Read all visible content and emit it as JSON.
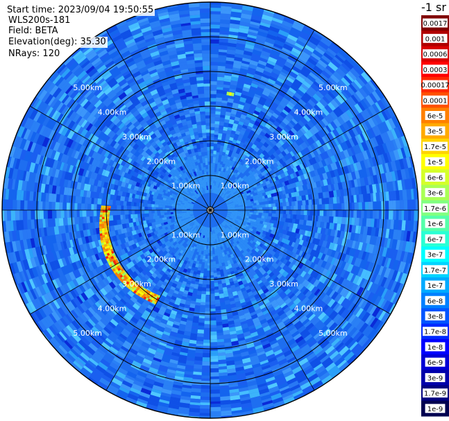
{
  "header": {
    "start_time": "Start time: 2023/09/04 19:50:55",
    "instrument": "WLS200s-181",
    "field": "Field: BETA",
    "elevation": "Elevation(deg): 35.30",
    "nrays": "NRays: 120"
  },
  "colorbar": {
    "unit_label": "-1 sr",
    "entries": [
      {
        "label": "0.0017",
        "color": "#800000"
      },
      {
        "label": "0.001",
        "color": "#b00000"
      },
      {
        "label": "0.0006",
        "color": "#d80000"
      },
      {
        "label": "0.0003",
        "color": "#ff0000"
      },
      {
        "label": "0.00017",
        "color": "#ff2800"
      },
      {
        "label": "0.0001",
        "color": "#ff5000"
      },
      {
        "label": "6e-5",
        "color": "#ff8000"
      },
      {
        "label": "3e-5",
        "color": "#ffaa00"
      },
      {
        "label": "1.7e-5",
        "color": "#ffd400"
      },
      {
        "label": "1e-5",
        "color": "#ffff00"
      },
      {
        "label": "6e-6",
        "color": "#d4ff2a"
      },
      {
        "label": "3e-6",
        "color": "#aaff55"
      },
      {
        "label": "1.7e-6",
        "color": "#80ff80"
      },
      {
        "label": "1e-6",
        "color": "#55ffaa"
      },
      {
        "label": "6e-7",
        "color": "#2affd4"
      },
      {
        "label": "3e-7",
        "color": "#00ffff"
      },
      {
        "label": "1.7e-7",
        "color": "#00d4ff"
      },
      {
        "label": "1e-7",
        "color": "#00aaff"
      },
      {
        "label": "6e-8",
        "color": "#0080ff"
      },
      {
        "label": "3e-8",
        "color": "#0055ff"
      },
      {
        "label": "1.7e-8",
        "color": "#002aff"
      },
      {
        "label": "1e-8",
        "color": "#0000ff"
      },
      {
        "label": "6e-9",
        "color": "#0000d4"
      },
      {
        "label": "3e-9",
        "color": "#0000aa"
      },
      {
        "label": "1.7e-9",
        "color": "#000080"
      },
      {
        "label": "1e-9",
        "color": "#000050"
      }
    ]
  },
  "chart_data": {
    "type": "heatmap",
    "projection": "polar-ppi",
    "field": "BETA",
    "rays": 120,
    "max_range_km": 6.0,
    "range_rings_km": [
      1,
      2,
      3,
      4,
      5,
      6
    ],
    "ring_labels": [
      "1.00km",
      "2.00km",
      "3.00km",
      "4.00km",
      "5.00km"
    ],
    "ring_label_angles_deg": [
      45,
      135,
      225,
      315
    ],
    "radial_lines_deg": [
      0,
      30,
      60,
      90,
      120,
      150,
      180,
      210,
      240,
      270,
      300,
      330
    ],
    "background_color": "#1e6ef0",
    "feature": {
      "description_index_note": "enhanced backscatter arc",
      "azimuth_range_deg": [
        210,
        272
      ],
      "range_km": [
        2.75,
        3.25
      ],
      "peak_color": "#ff2800",
      "edge_color": "#ffff00"
    }
  }
}
